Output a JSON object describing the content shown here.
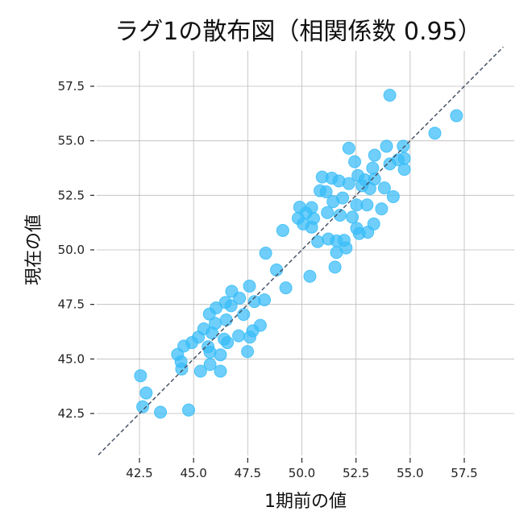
{
  "chart_data": {
    "type": "scatter",
    "title": "ラグ1の散布図（相関係数 0.95）",
    "xlabel": "1期前の値",
    "ylabel": "現在の値",
    "xlim": [
      40.6,
      59.3
    ],
    "ylim": [
      40.6,
      59.3
    ],
    "xticks": [
      42.5,
      45.0,
      47.5,
      50.0,
      52.5,
      55.0,
      57.5
    ],
    "yticks": [
      42.5,
      45.0,
      47.5,
      50.0,
      52.5,
      55.0,
      57.5
    ],
    "xtick_labels": [
      "42.5",
      "45.0",
      "47.5",
      "50.0",
      "52.5",
      "55.0",
      "57.5"
    ],
    "ytick_labels": [
      "42.5",
      "45.0",
      "47.5",
      "50.0",
      "52.5",
      "55.0",
      "57.5"
    ],
    "grid": true,
    "point_color": "#38bdf8",
    "reference_line": {
      "type": "y=x",
      "style": "dashed",
      "color": "#475569"
    },
    "correlation": 0.95,
    "points": [
      [
        54.06,
        57.09
      ],
      [
        57.14,
        56.15
      ],
      [
        56.14,
        55.35
      ],
      [
        52.17,
        54.66
      ],
      [
        53.91,
        54.75
      ],
      [
        54.68,
        54.75
      ],
      [
        53.36,
        54.34
      ],
      [
        52.44,
        54.04
      ],
      [
        54.06,
        53.94
      ],
      [
        54.45,
        54.13
      ],
      [
        54.73,
        54.19
      ],
      [
        54.73,
        53.69
      ],
      [
        53.27,
        53.75
      ],
      [
        50.94,
        53.34
      ],
      [
        51.38,
        53.29
      ],
      [
        51.71,
        53.16
      ],
      [
        52.17,
        53.04
      ],
      [
        52.59,
        53.41
      ],
      [
        52.91,
        53.21
      ],
      [
        53.36,
        53.25
      ],
      [
        53.81,
        52.84
      ],
      [
        50.84,
        52.71
      ],
      [
        51.12,
        52.66
      ],
      [
        52.78,
        52.94
      ],
      [
        53.14,
        52.81
      ],
      [
        54.22,
        52.44
      ],
      [
        49.9,
        51.96
      ],
      [
        50.45,
        51.94
      ],
      [
        51.44,
        52.21
      ],
      [
        51.88,
        52.38
      ],
      [
        52.53,
        52.06
      ],
      [
        53.01,
        52.06
      ],
      [
        53.68,
        51.88
      ],
      [
        51.18,
        51.71
      ],
      [
        51.76,
        51.59
      ],
      [
        52.33,
        51.5
      ],
      [
        49.83,
        51.45
      ],
      [
        50.19,
        51.69
      ],
      [
        50.54,
        51.44
      ],
      [
        50.06,
        51.19
      ],
      [
        50.45,
        51.04
      ],
      [
        52.53,
        50.99
      ],
      [
        53.04,
        50.81
      ],
      [
        53.32,
        51.19
      ],
      [
        52.65,
        50.75
      ],
      [
        49.12,
        50.89
      ],
      [
        50.73,
        50.38
      ],
      [
        51.22,
        50.5
      ],
      [
        51.6,
        50.41
      ],
      [
        51.95,
        50.44
      ],
      [
        52.04,
        50.09
      ],
      [
        51.6,
        49.88
      ],
      [
        48.33,
        49.85
      ],
      [
        51.53,
        49.21
      ],
      [
        48.83,
        49.08
      ],
      [
        50.37,
        48.79
      ],
      [
        49.26,
        48.26
      ],
      [
        47.58,
        48.34
      ],
      [
        46.76,
        48.1
      ],
      [
        47.12,
        47.79
      ],
      [
        47.81,
        47.63
      ],
      [
        48.27,
        47.71
      ],
      [
        46.47,
        47.59
      ],
      [
        46.73,
        47.44
      ],
      [
        46.04,
        47.34
      ],
      [
        45.73,
        47.06
      ],
      [
        47.31,
        47.04
      ],
      [
        46.51,
        46.79
      ],
      [
        46.0,
        46.63
      ],
      [
        48.08,
        46.54
      ],
      [
        45.47,
        46.38
      ],
      [
        45.85,
        46.19
      ],
      [
        47.73,
        46.29
      ],
      [
        47.08,
        46.06
      ],
      [
        47.6,
        46.0
      ],
      [
        45.22,
        46.0
      ],
      [
        44.92,
        45.75
      ],
      [
        44.55,
        45.59
      ],
      [
        46.41,
        45.91
      ],
      [
        46.56,
        45.75
      ],
      [
        45.67,
        45.56
      ],
      [
        45.76,
        45.31
      ],
      [
        46.24,
        45.19
      ],
      [
        47.49,
        45.34
      ],
      [
        44.26,
        45.21
      ],
      [
        44.42,
        44.88
      ],
      [
        44.45,
        44.54
      ],
      [
        45.76,
        44.75
      ],
      [
        45.32,
        44.44
      ],
      [
        46.24,
        44.44
      ],
      [
        42.55,
        44.23
      ],
      [
        42.81,
        43.44
      ],
      [
        42.65,
        42.81
      ],
      [
        43.47,
        42.56
      ],
      [
        44.77,
        42.66
      ]
    ]
  }
}
